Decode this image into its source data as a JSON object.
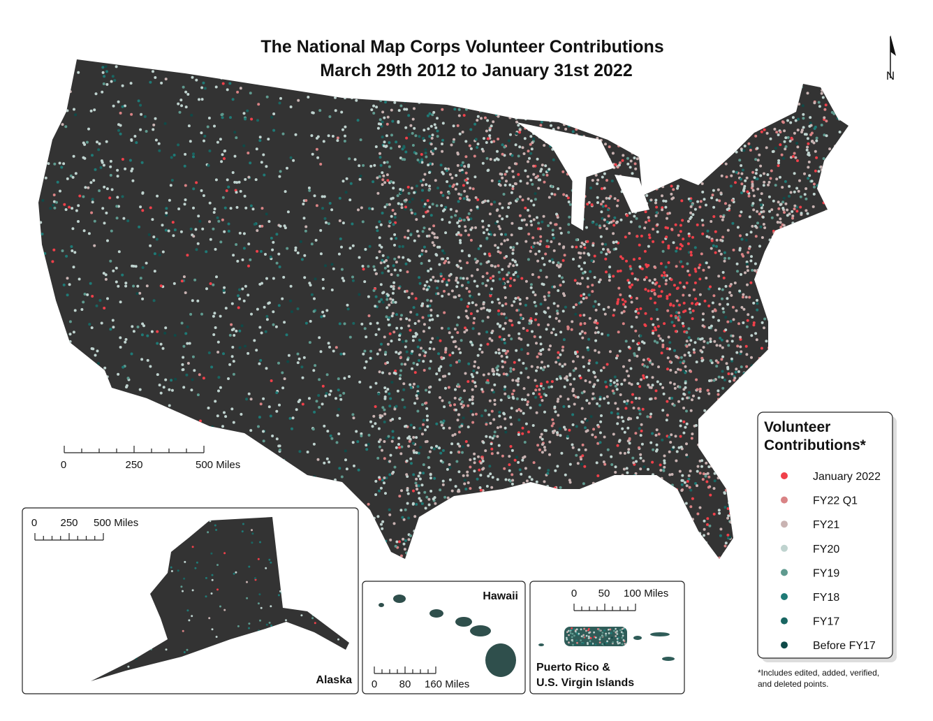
{
  "title": [
    "The National Map Corps Volunteer Contributions",
    "March 29th 2012 to January 31st 2022"
  ],
  "north_arrow": "N",
  "scale_bar": [
    "0",
    "250",
    "500 Miles"
  ],
  "insets": [
    {
      "label": [
        "Alaska"
      ],
      "scale_bar": [
        "0",
        "250",
        "500 Miles"
      ]
    },
    {
      "label": [
        "Hawaii"
      ],
      "scale_bar": [
        "0",
        "80",
        "160 Miles"
      ]
    },
    {
      "label": [
        "Puerto Rico &",
        "U.S. Virgin Islands"
      ],
      "scale_bar": [
        "0",
        "50",
        "100 Miles"
      ]
    }
  ],
  "legend": {
    "title": [
      "Volunteer",
      "Contributions*"
    ],
    "items": [
      {
        "label": "January 2022",
        "color": "#f0404a"
      },
      {
        "label": "FY22 Q1",
        "color": "#d98385"
      },
      {
        "label": "FY21",
        "color": "#c9b3b2"
      },
      {
        "label": "FY20",
        "color": "#bfd3cf"
      },
      {
        "label": "FY19",
        "color": "#5f9a8f"
      },
      {
        "label": "FY18",
        "color": "#1f7a76"
      },
      {
        "label": "FY17",
        "color": "#196662"
      },
      {
        "label": "Before FY17",
        "color": "#0f4a48"
      }
    ]
  },
  "footnote": [
    "*Includes edited, added, verified,",
    "and deleted points."
  ]
}
